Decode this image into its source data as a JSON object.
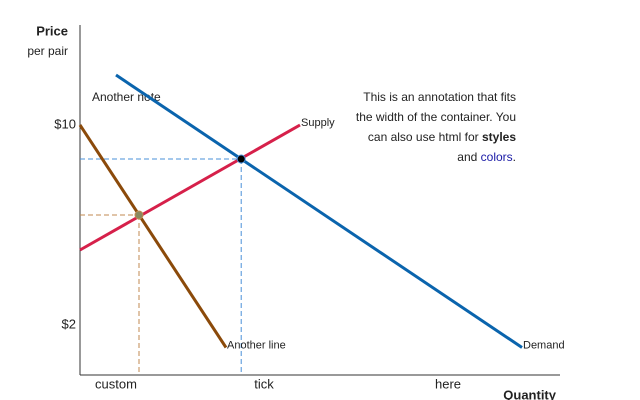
{
  "chart_data": {
    "type": "line",
    "y_label": "Price",
    "y_sublabel": "per pair",
    "x_label": "Quantity",
    "xlim": [
      0,
      12
    ],
    "ylim": [
      0,
      14
    ],
    "xticks": [
      {
        "value": 0.9,
        "label": "custom"
      },
      {
        "value": 4.6,
        "label": "tick"
      },
      {
        "value": 9.2,
        "label": "here"
      }
    ],
    "xtick_colors": [
      "#333333",
      "#1a5fb4",
      "#333333"
    ],
    "yticks": [
      {
        "value": 10,
        "label": "$10"
      },
      {
        "value": 2,
        "label": "$2"
      }
    ],
    "ytick_color": "#d6204a",
    "series": [
      {
        "name": "Demand",
        "color": "#0a64ad",
        "x": [
          0.9,
          11.05
        ],
        "y": [
          12,
          1.1
        ]
      },
      {
        "name": "Supply",
        "color": "#d6204a",
        "x": [
          0,
          5.5
        ],
        "y": [
          5,
          10
        ]
      },
      {
        "name": "Another line",
        "color": "#8b4a0a",
        "x": [
          0,
          3.65
        ],
        "y": [
          10,
          1.1
        ]
      }
    ],
    "points": [
      {
        "x": 4.03,
        "y": 8.64,
        "color": "#000000",
        "guide_color": "#4a90d9"
      },
      {
        "x": 1.475,
        "y": 6.4,
        "color": "#8a8a60",
        "guide_color": "#c08a50"
      }
    ],
    "note": "Another note",
    "annotation": {
      "line1": "This is an annotation that fits",
      "line2": "the width of the container. You",
      "line3": "can also use html for ",
      "bold": "styles",
      "line4": "and ",
      "colored": "colors",
      "end": ".",
      "colored_color": "#1a1aa6"
    }
  }
}
